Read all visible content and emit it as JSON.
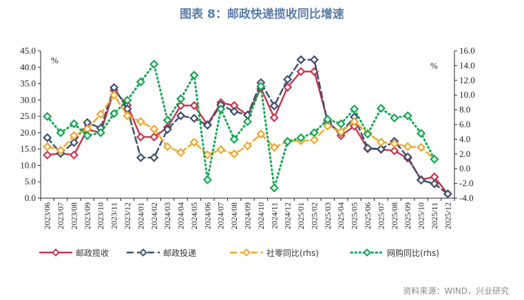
{
  "title": "图表 8：邮政快递揽收同比增速",
  "source": "资料来源：WIND，兴业研究",
  "chart_data": {
    "type": "line",
    "title": "图表 8：邮政快递揽收同比增速",
    "y_left": {
      "unit": "%",
      "range": [
        0,
        45
      ],
      "ticks": [
        "0.0",
        "5.0",
        "10.0",
        "15.0",
        "20.0",
        "25.0",
        "30.0",
        "35.0",
        "40.0",
        "45.0"
      ]
    },
    "y_right": {
      "unit": "%",
      "range": [
        -4,
        16
      ],
      "ticks": [
        "-4.0",
        "-2.0",
        "0.0",
        "2.0",
        "4.0",
        "6.0",
        "8.0",
        "10.0",
        "12.0",
        "14.0",
        "16.0"
      ]
    },
    "grid": false,
    "legend_placement": "bottom",
    "categories": [
      "2023/06",
      "2023/07",
      "2023/08",
      "2023/09",
      "2023/10",
      "2023/11",
      "2023/12",
      "2024/01",
      "2024/02",
      "2024/03",
      "2024/04",
      "2024/05",
      "2024/06",
      "2024/07",
      "2024/08",
      "2024/09",
      "2024/10",
      "2024/11",
      "2024/12",
      "2025/01",
      "2025/02",
      "2025/03",
      "2025/04",
      "2025/05",
      "2025/06",
      "2025/07",
      "2025/08",
      "2025/09",
      "2025/10",
      "2025/11",
      "2025/12"
    ],
    "series": [
      {
        "name": "邮政揽收",
        "axis": "left",
        "color": "#c8374f",
        "style": "solid",
        "values": [
          13.2,
          13.7,
          13.2,
          21.0,
          20.0,
          33.0,
          28.4,
          18.7,
          18.7,
          21.6,
          28.3,
          28.3,
          22.5,
          29.2,
          28.3,
          25.4,
          33.6,
          24.6,
          33.9,
          38.7,
          38.7,
          23.7,
          19.1,
          22.0,
          15.1,
          14.9,
          14.5,
          12.2,
          5.7,
          6.5,
          1.3
        ]
      },
      {
        "name": "邮政投递",
        "axis": "left",
        "color": "#3d4f6e",
        "style": "dashed",
        "values": [
          18.5,
          13.7,
          17.0,
          23.1,
          21.4,
          33.8,
          27.3,
          12.4,
          12.4,
          21.0,
          25.2,
          24.4,
          22.3,
          28.5,
          26.5,
          25.4,
          35.3,
          28.2,
          36.3,
          42.3,
          42.3,
          23.0,
          20.0,
          24.8,
          15.3,
          15.0,
          17.4,
          12.6,
          5.5,
          4.4,
          1.3
        ]
      },
      {
        "name": "社零同比(rhs)",
        "axis": "right",
        "color": "#f0a830",
        "style": "dashed",
        "values": [
          3.0,
          2.5,
          4.5,
          5.4,
          7.4,
          10.0,
          7.2,
          6.4,
          5.4,
          3.0,
          2.2,
          3.6,
          1.9,
          2.6,
          2.0,
          3.1,
          4.7,
          2.9,
          3.7,
          3.8,
          3.9,
          5.8,
          5.0,
          6.4,
          4.8,
          3.6,
          3.4,
          3.0,
          2.9,
          1.3,
          null
        ]
      },
      {
        "name": "网购同比(rhs)",
        "axis": "right",
        "color": "#12a650",
        "style": "dotted",
        "values": [
          7.1,
          4.9,
          6.1,
          4.5,
          4.9,
          7.5,
          9.3,
          11.8,
          14.2,
          6.6,
          9.5,
          12.7,
          -1.5,
          8.1,
          4.0,
          6.4,
          11.2,
          -2.6,
          3.7,
          4.2,
          4.9,
          6.7,
          6.1,
          8.1,
          4.7,
          8.2,
          6.9,
          7.2,
          4.8,
          1.3,
          null
        ]
      }
    ]
  }
}
